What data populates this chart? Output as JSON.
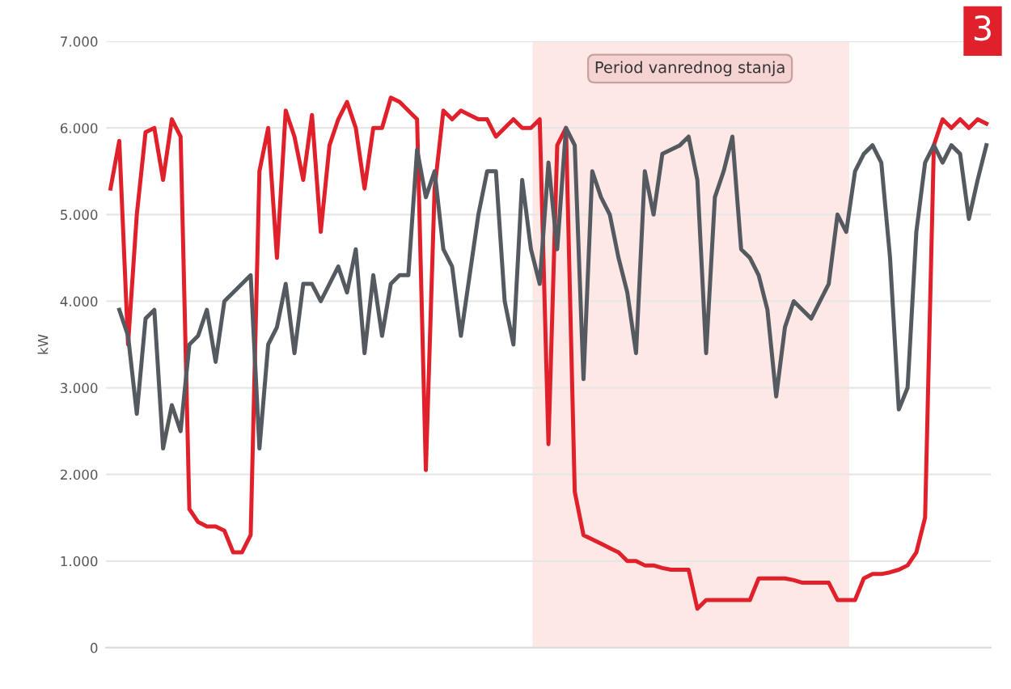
{
  "chart_data": {
    "type": "line",
    "ylabel": "kW",
    "ylim": [
      0,
      7000
    ],
    "yticks": [
      {
        "value": 0,
        "label": "0"
      },
      {
        "value": 1000,
        "label": "1.000"
      },
      {
        "value": 2000,
        "label": "2.000"
      },
      {
        "value": 3000,
        "label": "3.000"
      },
      {
        "value": 4000,
        "label": "4.000"
      },
      {
        "value": 5000,
        "label": "5.000"
      },
      {
        "value": 6000,
        "label": "6.000"
      },
      {
        "value": 7000,
        "label": "7.000"
      }
    ],
    "categories": [
      null,
      null,
      null,
      null,
      null,
      null,
      null,
      null,
      null,
      null,
      null,
      null,
      null,
      null,
      null,
      null,
      null,
      null,
      null,
      null,
      null,
      null,
      null,
      null,
      null,
      null,
      null,
      null,
      null,
      null,
      null,
      null,
      null,
      null,
      null,
      null,
      null,
      null,
      null,
      null,
      null,
      null,
      null,
      null,
      null,
      null,
      null,
      null,
      null,
      null,
      null,
      null,
      null,
      null,
      null,
      null,
      null,
      null,
      null,
      null,
      null,
      null,
      null,
      null,
      null,
      null,
      null,
      null,
      null,
      null,
      null,
      null,
      null,
      null,
      null,
      null,
      null,
      null,
      null,
      null,
      null,
      null,
      null,
      null,
      null,
      null,
      null,
      null,
      null,
      null,
      null,
      null,
      null,
      null,
      null,
      null,
      null,
      null,
      null,
      null,
      null
    ],
    "grid": "y",
    "marker": "none",
    "line_style": "solid",
    "annotations": [
      "Period vanrednog stanja",
      "3"
    ],
    "series": [
      {
        "color": "#e0202a",
        "values": [
          5300,
          5850,
          3500,
          5000,
          5950,
          6000,
          5400,
          6100,
          5900,
          1600,
          1450,
          1400,
          1400,
          1350,
          1100,
          1100,
          1300,
          5500,
          6000,
          4500,
          6200,
          5900,
          5400,
          6150,
          4800,
          5800,
          6100,
          6300,
          6000,
          5300,
          6000,
          6000,
          6350,
          6300,
          6200,
          6100,
          2050,
          5300,
          6200,
          6100,
          6200,
          6150,
          6100,
          6100,
          5900,
          6000,
          6100,
          6000,
          6000,
          6100,
          2350,
          5800,
          6000,
          1800,
          1300,
          1250,
          1200,
          1150,
          1100,
          1000,
          1000,
          950,
          950,
          920,
          900,
          900,
          900,
          450,
          550,
          550,
          550,
          550,
          550,
          550,
          800,
          800,
          800,
          800,
          780,
          750,
          750,
          750,
          750,
          550,
          550,
          550,
          800,
          850,
          850,
          870,
          900,
          950,
          1100,
          1500,
          5800,
          6100,
          6000,
          6100,
          6000,
          6100,
          6050
        ]
      },
      {
        "color": "#555a60",
        "values": [
          null,
          3900,
          3600,
          2700,
          3800,
          3900,
          2300,
          2800,
          2500,
          3500,
          3600,
          3900,
          3300,
          4000,
          4100,
          4200,
          4300,
          2300,
          3500,
          3700,
          4200,
          3400,
          4200,
          4200,
          4000,
          4200,
          4400,
          4100,
          4600,
          3400,
          4300,
          3600,
          4200,
          4300,
          4300,
          5750,
          5200,
          5500,
          4600,
          4400,
          3600,
          4300,
          5000,
          5500,
          5500,
          4000,
          3500,
          5400,
          4600,
          4200,
          5600,
          4600,
          6000,
          5800,
          3100,
          5500,
          5200,
          5000,
          4500,
          4100,
          3400,
          5500,
          5000,
          5700,
          5750,
          5800,
          5900,
          5400,
          3400,
          5200,
          5500,
          5900,
          4600,
          4500,
          4300,
          3900,
          2900,
          3700,
          4000,
          3900,
          3800,
          4000,
          4200,
          5000,
          4800,
          5500,
          5700,
          5800,
          5600,
          4500,
          2750,
          3000,
          4800,
          5600,
          5800,
          5600,
          5800,
          5700,
          4950,
          5400,
          5800
        ]
      }
    ]
  }
}
